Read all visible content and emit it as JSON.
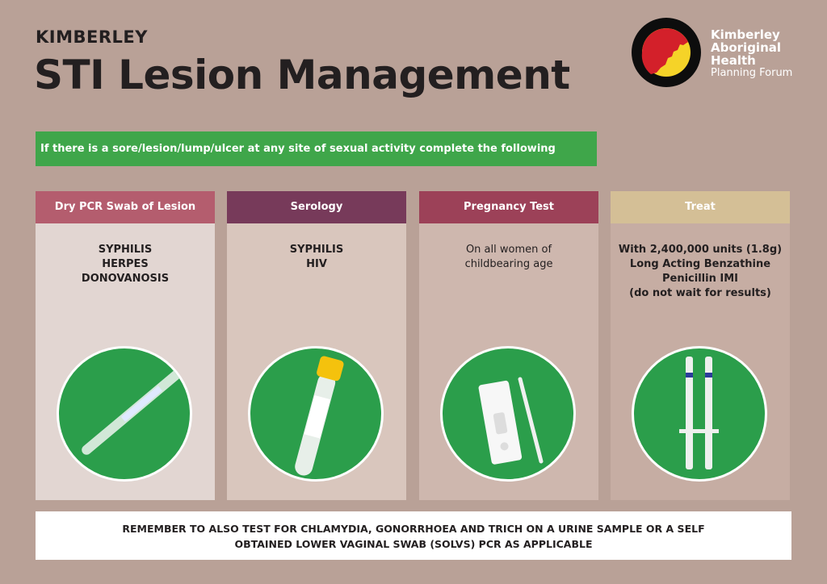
{
  "header": {
    "supertitle": "KIMBERLEY",
    "title": "STI Lesion Management"
  },
  "logo": {
    "line1": "Kimberley",
    "line2": "Aboriginal",
    "line3": "Health",
    "line4": "Planning Forum",
    "colors": {
      "ring": "#0d0d0d",
      "red": "#d3202a",
      "yellow": "#f5d328"
    }
  },
  "banner": {
    "text": "If there is a sore/lesion/lump/ulcer at any site of sexual activity complete the following",
    "color": "#3fa64a"
  },
  "columns": [
    {
      "header": "Dry PCR Swab of Lesion",
      "lines": [
        "SYPHILIS",
        "HERPES",
        "DONOVANOSIS"
      ],
      "header_color": "#b45d6e",
      "body_color": "#e2d6d2",
      "image": "swab"
    },
    {
      "header": "Serology",
      "lines": [
        "SYPHILIS",
        "HIV"
      ],
      "header_color": "#773a5a",
      "body_color": "#d9c6bd",
      "image": "blood-tube"
    },
    {
      "header": "Pregnancy Test",
      "lines": [
        "On all women of",
        "childbearing age"
      ],
      "header_color": "#9c4158",
      "body_color": "#ceb7ae",
      "image": "pregnancy-test"
    },
    {
      "header": "Treat",
      "lines": [
        "With 2,400,000 units (1.8g)",
        "Long Acting Benzathine",
        "Penicillin IMI",
        "(do not wait for results)"
      ],
      "header_color": "#d4bf96",
      "body_color": "#c6ada3",
      "image": "syringes"
    }
  ],
  "footer": {
    "line1": "REMEMBER TO ALSO TEST FOR CHLAMYDIA, GONORRHOEA AND TRICH ON A URINE SAMPLE OR A SELF",
    "line2": "OBTAINED LOWER VAGINAL SWAB (SOLVS) PCR AS APPLICABLE"
  }
}
